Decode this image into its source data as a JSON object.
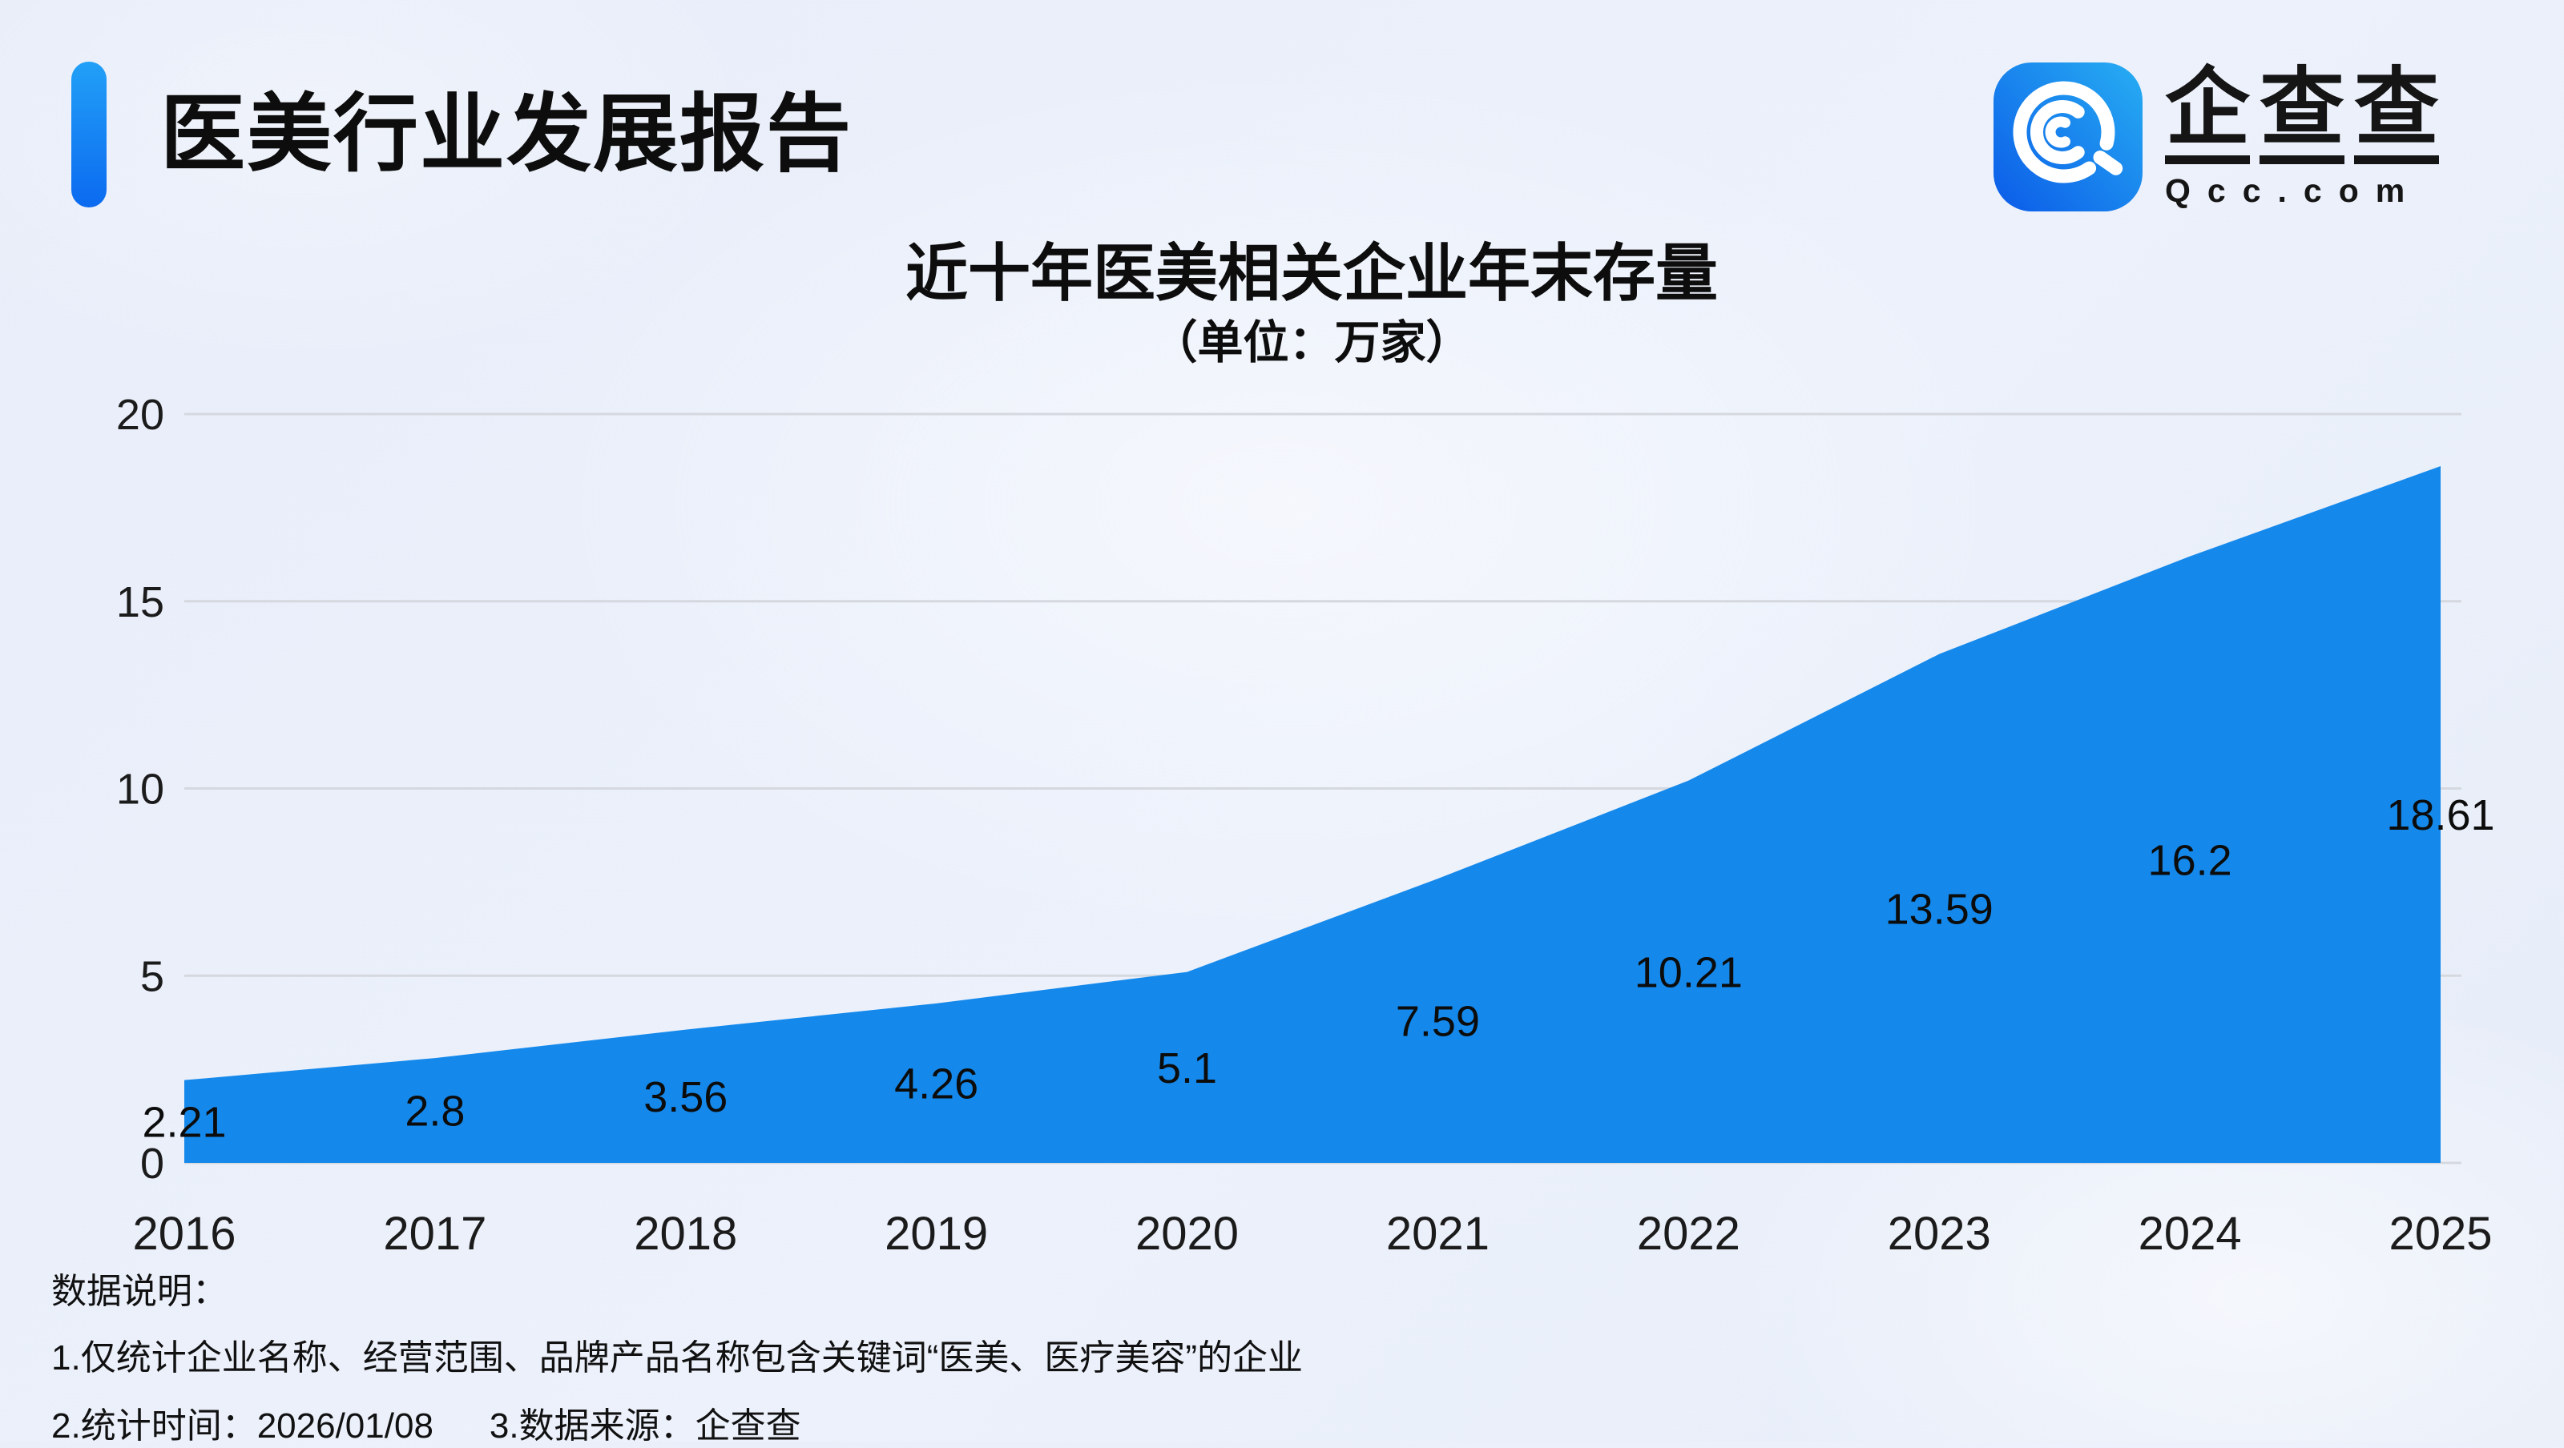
{
  "header": {
    "title": "医美行业发展报告"
  },
  "logo": {
    "icon": "qcc-magnifier-icon",
    "cn_chars": [
      "企",
      "查",
      "查"
    ],
    "domain": "Qcc.com",
    "icon_gradient": [
      "#0B5BE8",
      "#27AEF3"
    ]
  },
  "chart_data": {
    "type": "area",
    "title": "近十年医美相关企业年末存量",
    "subtitle": "（单位：万家）",
    "unit": "万家",
    "categories": [
      "2016",
      "2017",
      "2018",
      "2019",
      "2020",
      "2021",
      "2022",
      "2023",
      "2024",
      "2025"
    ],
    "values": [
      2.21,
      2.8,
      3.56,
      4.26,
      5.1,
      7.59,
      10.21,
      13.59,
      16.2,
      18.61
    ],
    "ylim": [
      0,
      20
    ],
    "yticks": [
      0,
      5,
      10,
      15,
      20
    ],
    "grid": true,
    "legend": "none",
    "area_color": "#1589EB",
    "gridline_color": "#D5D8DE",
    "label_color": "#0c0c0c"
  },
  "footer": {
    "heading": "数据说明：",
    "note1": "1.仅统计企业名称、经营范围、品牌产品名称包含关键词“医美、医疗美容”的企业",
    "note2_parts": [
      "2.统计时间：2026/01/08",
      "3.数据来源：企查查"
    ]
  },
  "colors": {
    "accent_blue": "#1589EB",
    "accent_bar_gradient": [
      "#22A0F7",
      "#0B6AF0"
    ],
    "background": "#EAEFF9",
    "text": "#111111"
  }
}
